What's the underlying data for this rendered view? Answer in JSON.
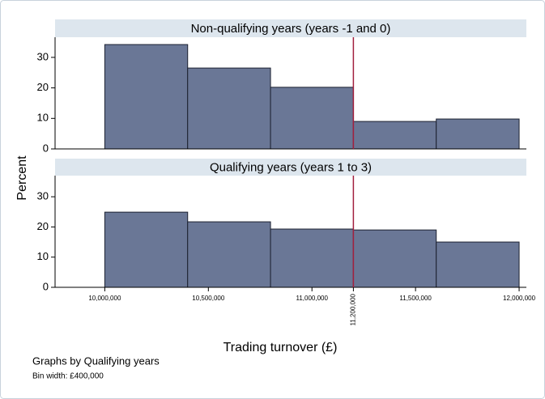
{
  "figure": {
    "ylabel": "Percent",
    "xlabel": "Trading turnover (£)",
    "note": "Graphs by Qualifying years",
    "bin_note": "Bin width: £400,000"
  },
  "chart_data": [
    {
      "type": "histogram",
      "title": "Non-qualifying years (years -1 and 0)",
      "bins": [
        10000000,
        10400000,
        10800000,
        11200000,
        11600000,
        12000000
      ],
      "values": [
        34.2,
        26.5,
        20.2,
        9.0,
        9.8
      ],
      "color": "#6a7796",
      "xlim": [
        9760000,
        12035000
      ],
      "ylim": [
        0,
        36.6
      ],
      "yticks": [
        0,
        10,
        20,
        30
      ],
      "xline": 11200000,
      "xline_color": "#a3213f"
    },
    {
      "type": "histogram",
      "title": "Qualifying years (years 1 to 3)",
      "bins": [
        10000000,
        10400000,
        10800000,
        11200000,
        11600000,
        12000000
      ],
      "values": [
        24.9,
        21.7,
        19.3,
        19.0,
        15.0
      ],
      "color": "#6a7796",
      "xlim": [
        9760000,
        12035000
      ],
      "ylim": [
        0,
        37
      ],
      "yticks": [
        0,
        10,
        20,
        30
      ],
      "xticks": [
        {
          "value": 10000000,
          "label": "10,000,000"
        },
        {
          "value": 10500000,
          "label": "10,500,000"
        },
        {
          "value": 11000000,
          "label": "11,000,000"
        },
        {
          "value": 11200000,
          "label": "11,200,000"
        },
        {
          "value": 11500000,
          "label": "11,500,000"
        },
        {
          "value": 12000000,
          "label": "12,000,000"
        }
      ],
      "xline": 11200000,
      "xline_color": "#a3213f"
    }
  ]
}
